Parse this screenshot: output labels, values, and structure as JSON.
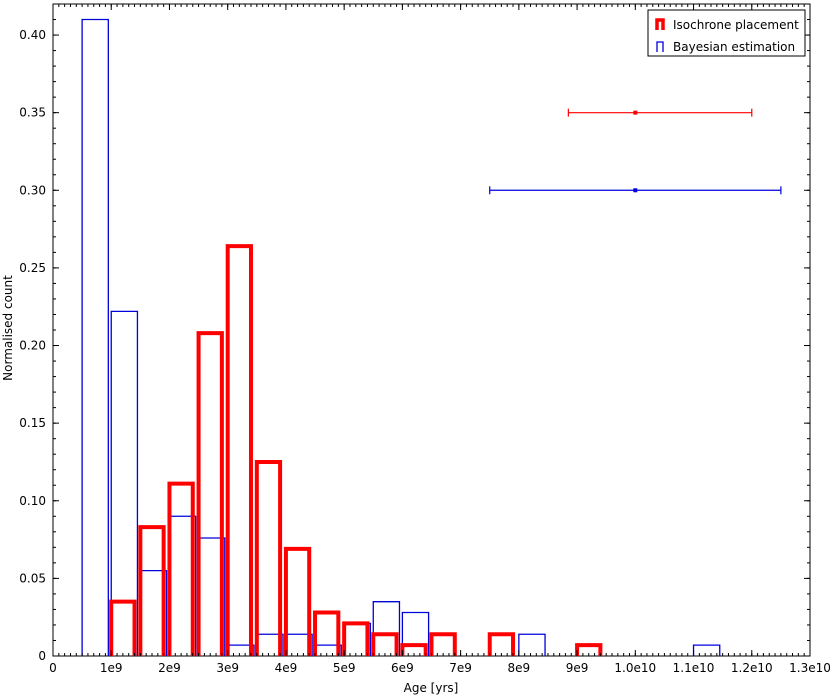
{
  "chart_data": {
    "type": "bar",
    "xlabel": "Age [yrs]",
    "ylabel": "Normalised count",
    "xlim": [
      0,
      13000000000.0
    ],
    "ylim": [
      0,
      0.42
    ],
    "xticks": [
      0,
      1000000000.0,
      2000000000.0,
      3000000000.0,
      4000000000.0,
      5000000000.0,
      6000000000.0,
      7000000000.0,
      8000000000.0,
      9000000000.0,
      10000000000.0,
      11000000000.0,
      12000000000.0,
      13000000000.0
    ],
    "xtick_labels": [
      "0",
      "1e9",
      "2e9",
      "3e9",
      "4e9",
      "5e9",
      "6e9",
      "7e9",
      "8e9",
      "9e9",
      "1.0e10",
      "1.1e10",
      "1.2e10",
      "1.3e10"
    ],
    "yticks": [
      0,
      0.05,
      0.1,
      0.15,
      0.2,
      0.25,
      0.3,
      0.35,
      0.4
    ],
    "ytick_labels": [
      "0",
      "0.05",
      "0.10",
      "0.15",
      "0.20",
      "0.25",
      "0.30",
      "0.35",
      "0.40"
    ],
    "legend_position": "top-right",
    "series": [
      {
        "name": "Isochrone placement",
        "color": "#ff0000",
        "bins": [
          {
            "x0": 1000000000.0,
            "x1": 1400000000.0,
            "value": 0.035
          },
          {
            "x0": 1500000000.0,
            "x1": 1900000000.0,
            "value": 0.083
          },
          {
            "x0": 2000000000.0,
            "x1": 2400000000.0,
            "value": 0.111
          },
          {
            "x0": 2500000000.0,
            "x1": 2900000000.0,
            "value": 0.208
          },
          {
            "x0": 3000000000.0,
            "x1": 3400000000.0,
            "value": 0.264
          },
          {
            "x0": 3500000000.0,
            "x1": 3900000000.0,
            "value": 0.125
          },
          {
            "x0": 4000000000.0,
            "x1": 4400000000.0,
            "value": 0.069
          },
          {
            "x0": 4500000000.0,
            "x1": 4900000000.0,
            "value": 0.028
          },
          {
            "x0": 5000000000.0,
            "x1": 5400000000.0,
            "value": 0.021
          },
          {
            "x0": 5500000000.0,
            "x1": 5900000000.0,
            "value": 0.014
          },
          {
            "x0": 6000000000.0,
            "x1": 6400000000.0,
            "value": 0.007
          },
          {
            "x0": 6500000000.0,
            "x1": 6900000000.0,
            "value": 0.014
          },
          {
            "x0": 7500000000.0,
            "x1": 7900000000.0,
            "value": 0.014
          },
          {
            "x0": 9000000000.0,
            "x1": 9400000000.0,
            "value": 0.007
          }
        ],
        "errorbar": {
          "x": 10000000000.0,
          "y": 0.35,
          "xmin": 8850000000.0,
          "xmax": 12000000000.0
        }
      },
      {
        "name": "Bayesian estimation",
        "color": "#0000dd",
        "bins": [
          {
            "x0": 500000000.0,
            "x1": 950000000.0,
            "value": 0.41
          },
          {
            "x0": 1000000000.0,
            "x1": 1450000000.0,
            "value": 0.222
          },
          {
            "x0": 1500000000.0,
            "x1": 1950000000.0,
            "value": 0.055
          },
          {
            "x0": 2000000000.0,
            "x1": 2450000000.0,
            "value": 0.09
          },
          {
            "x0": 2500000000.0,
            "x1": 2950000000.0,
            "value": 0.076
          },
          {
            "x0": 3000000000.0,
            "x1": 3450000000.0,
            "value": 0.007
          },
          {
            "x0": 3500000000.0,
            "x1": 3950000000.0,
            "value": 0.014
          },
          {
            "x0": 4000000000.0,
            "x1": 4450000000.0,
            "value": 0.014
          },
          {
            "x0": 4500000000.0,
            "x1": 4950000000.0,
            "value": 0.007
          },
          {
            "x0": 5000000000.0,
            "x1": 5450000000.0,
            "value": 0.021
          },
          {
            "x0": 5500000000.0,
            "x1": 5950000000.0,
            "value": 0.035
          },
          {
            "x0": 6000000000.0,
            "x1": 6450000000.0,
            "value": 0.028
          },
          {
            "x0": 8000000000.0,
            "x1": 8450000000.0,
            "value": 0.014
          },
          {
            "x0": 11000000000.0,
            "x1": 11450000000.0,
            "value": 0.007
          }
        ],
        "errorbar": {
          "x": 10000000000.0,
          "y": 0.3,
          "xmin": 7500000000.0,
          "xmax": 12500000000.0
        }
      }
    ]
  }
}
